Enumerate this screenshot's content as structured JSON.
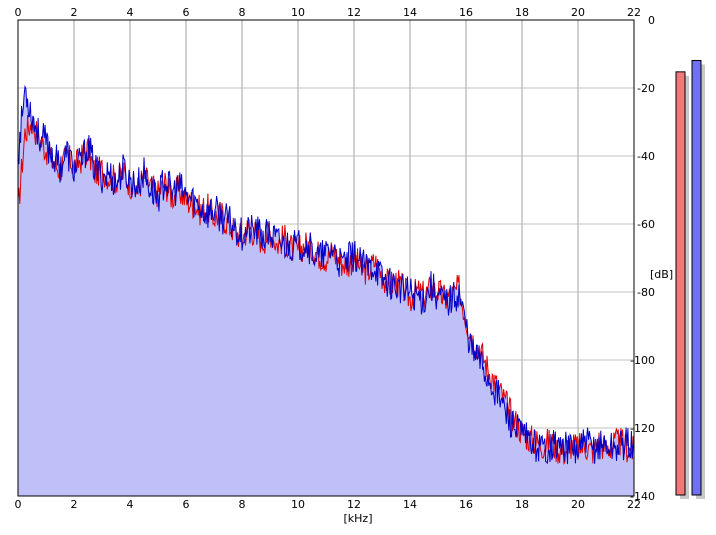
{
  "chart_data": {
    "type": "area",
    "x_unit_label": "[kHz]",
    "y_unit_label": "[dB]",
    "xlim": [
      0,
      22
    ],
    "ylim": [
      -140,
      0
    ],
    "x_ticks": [
      0,
      2,
      4,
      6,
      8,
      10,
      12,
      14,
      16,
      18,
      20,
      22
    ],
    "y_ticks": [
      0,
      -20,
      -40,
      -60,
      -80,
      -100,
      -120,
      -140
    ],
    "grid": true,
    "area_color": "#c0c0f8",
    "series": [
      {
        "color": "#e00000",
        "x": [
          0.0,
          0.25,
          0.5,
          0.75,
          1.0,
          1.25,
          1.5,
          1.75,
          2.0,
          2.25,
          2.5,
          2.75,
          3.0,
          3.25,
          3.5,
          3.75,
          4.0,
          4.25,
          4.5,
          4.75,
          5.0,
          5.25,
          5.5,
          5.75,
          6.0,
          6.25,
          6.5,
          6.75,
          7.0,
          7.25,
          7.5,
          7.75,
          8.0,
          8.25,
          8.5,
          8.75,
          9.0,
          9.25,
          9.5,
          9.75,
          10.0,
          10.25,
          10.5,
          10.75,
          11.0,
          11.25,
          11.5,
          11.75,
          12.0,
          12.25,
          12.5,
          12.75,
          13.0,
          13.25,
          13.5,
          13.75,
          14.0,
          14.25,
          14.5,
          14.75,
          15.0,
          15.25,
          15.5,
          15.75,
          16.0,
          16.25,
          16.5,
          16.75,
          17.0,
          17.25,
          17.5,
          17.75,
          18.0,
          18.25,
          18.5,
          18.75,
          19.0,
          19.25,
          19.5,
          19.75,
          20.0,
          20.25,
          20.5,
          20.75,
          21.0,
          21.25,
          21.5,
          21.75,
          22.0
        ],
        "values": [
          -56,
          -33,
          -30,
          -35,
          -38,
          -42,
          -44,
          -40,
          -43,
          -41,
          -38,
          -45,
          -44,
          -46,
          -47,
          -45,
          -48,
          -50,
          -46,
          -49,
          -51,
          -48,
          -52,
          -50,
          -53,
          -54,
          -56,
          -55,
          -58,
          -57,
          -60,
          -62,
          -64,
          -61,
          -63,
          -65,
          -62,
          -66,
          -64,
          -67,
          -68,
          -66,
          -67,
          -69,
          -70,
          -68,
          -71,
          -72,
          -70,
          -73,
          -74,
          -71,
          -75,
          -78,
          -77,
          -79,
          -82,
          -80,
          -81,
          -79,
          -80,
          -82,
          -81,
          -79,
          -88,
          -94,
          -97,
          -102,
          -106,
          -110,
          -114,
          -118,
          -121,
          -123,
          -124,
          -125,
          -124,
          -126,
          -127,
          -125,
          -126,
          -125,
          -127,
          -124,
          -126,
          -125,
          -124,
          -126,
          -127
        ]
      },
      {
        "color": "#0000c8",
        "x": [
          0.0,
          0.25,
          0.5,
          0.75,
          1.0,
          1.25,
          1.5,
          1.75,
          2.0,
          2.25,
          2.5,
          2.75,
          3.0,
          3.25,
          3.5,
          3.75,
          4.0,
          4.25,
          4.5,
          4.75,
          5.0,
          5.25,
          5.5,
          5.75,
          6.0,
          6.25,
          6.5,
          6.75,
          7.0,
          7.25,
          7.5,
          7.75,
          8.0,
          8.25,
          8.5,
          8.75,
          9.0,
          9.25,
          9.5,
          9.75,
          10.0,
          10.25,
          10.5,
          10.75,
          11.0,
          11.25,
          11.5,
          11.75,
          12.0,
          12.25,
          12.5,
          12.75,
          13.0,
          13.25,
          13.5,
          13.75,
          14.0,
          14.25,
          14.5,
          14.75,
          15.0,
          15.25,
          15.5,
          15.75,
          16.0,
          16.25,
          16.5,
          16.75,
          17.0,
          17.25,
          17.5,
          17.75,
          18.0,
          18.25,
          18.5,
          18.75,
          19.0,
          19.25,
          19.5,
          19.75,
          20.0,
          20.25,
          20.5,
          20.75,
          21.0,
          21.25,
          21.5,
          21.75,
          22.0
        ],
        "values": [
          -40,
          -20,
          -28,
          -34,
          -36,
          -40,
          -43,
          -39,
          -44,
          -42,
          -37,
          -44,
          -46,
          -45,
          -48,
          -44,
          -47,
          -49,
          -45,
          -50,
          -52,
          -47,
          -51,
          -49,
          -52,
          -53,
          -55,
          -57,
          -56,
          -58,
          -59,
          -61,
          -63,
          -62,
          -62,
          -64,
          -63,
          -65,
          -66,
          -66,
          -67,
          -65,
          -68,
          -70,
          -69,
          -67,
          -72,
          -71,
          -69,
          -72,
          -73,
          -72,
          -76,
          -77,
          -78,
          -80,
          -80,
          -81,
          -82,
          -78,
          -81,
          -83,
          -82,
          -80,
          -90,
          -98,
          -100,
          -105,
          -108,
          -112,
          -117,
          -120,
          -122,
          -124,
          -125,
          -126,
          -125,
          -125,
          -126,
          -126,
          -127,
          -124,
          -126,
          -125,
          -125,
          -126,
          -125,
          -124,
          -126
        ]
      }
    ]
  },
  "meters": {
    "left_channel": {
      "color": "#f07878",
      "level_fraction": 0.93
    },
    "right_channel": {
      "color": "#7070f0",
      "level_fraction": 0.955
    }
  }
}
